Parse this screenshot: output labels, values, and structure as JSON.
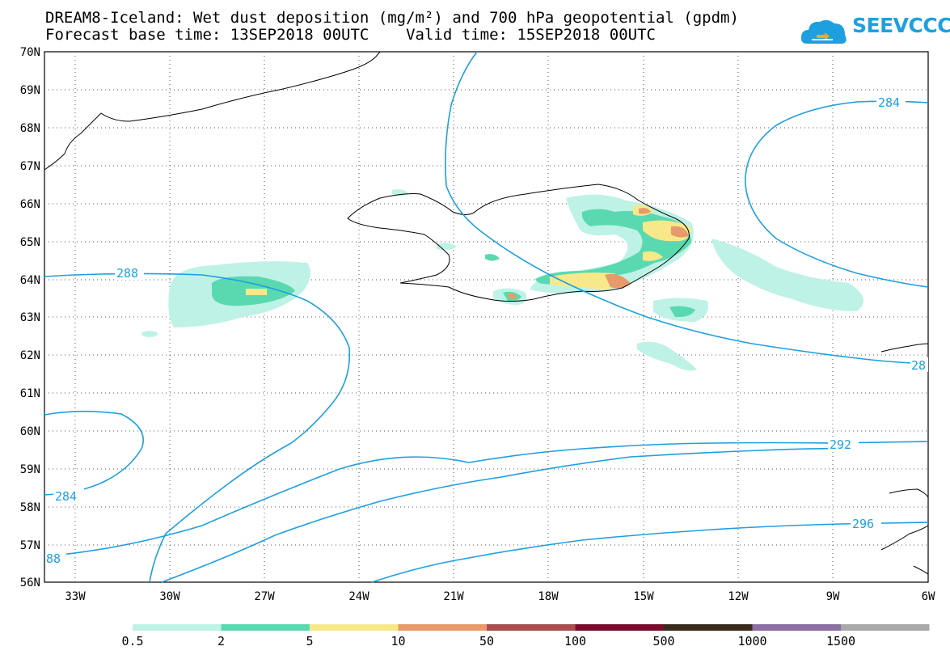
{
  "header": {
    "title_line1": "DREAM8-Iceland: Wet dust deposition (mg/m²) and 700 hPa geopotential (gpdm)",
    "title_line2": "Forecast base time: 13SEP2018 00UTC    Valid time: 15SEP2018 00UTC"
  },
  "logo": {
    "text": "SEEVCCC",
    "icon": "cloud-icon",
    "color": "#1e9fe0"
  },
  "map": {
    "lat_labels": [
      "70N",
      "69N",
      "68N",
      "67N",
      "66N",
      "65N",
      "64N",
      "63N",
      "62N",
      "61N",
      "60N",
      "59N",
      "58N",
      "57N",
      "56N"
    ],
    "lon_labels": [
      "33W",
      "30W",
      "27W",
      "24W",
      "21W",
      "18W",
      "15W",
      "12W",
      "9W",
      "6W"
    ],
    "contour_labels": {
      "c284_ne": "284",
      "c288_w": "288",
      "c28_e": "28",
      "c292": "292",
      "c284_sw": "284",
      "c296": "296",
      "c88_sw": "88"
    },
    "contour_color": "#1e9fe0"
  },
  "legend": {
    "colors": [
      "#bff2e6",
      "#5ad9b0",
      "#f7e98a",
      "#e99a6a",
      "#a84e4e",
      "#7a0d2e",
      "#3a2a1c",
      "#8c6fa3",
      "#a9a9a9"
    ],
    "labels": [
      "0.5",
      "2",
      "5",
      "10",
      "50",
      "100",
      "500",
      "1000",
      "1500"
    ]
  }
}
